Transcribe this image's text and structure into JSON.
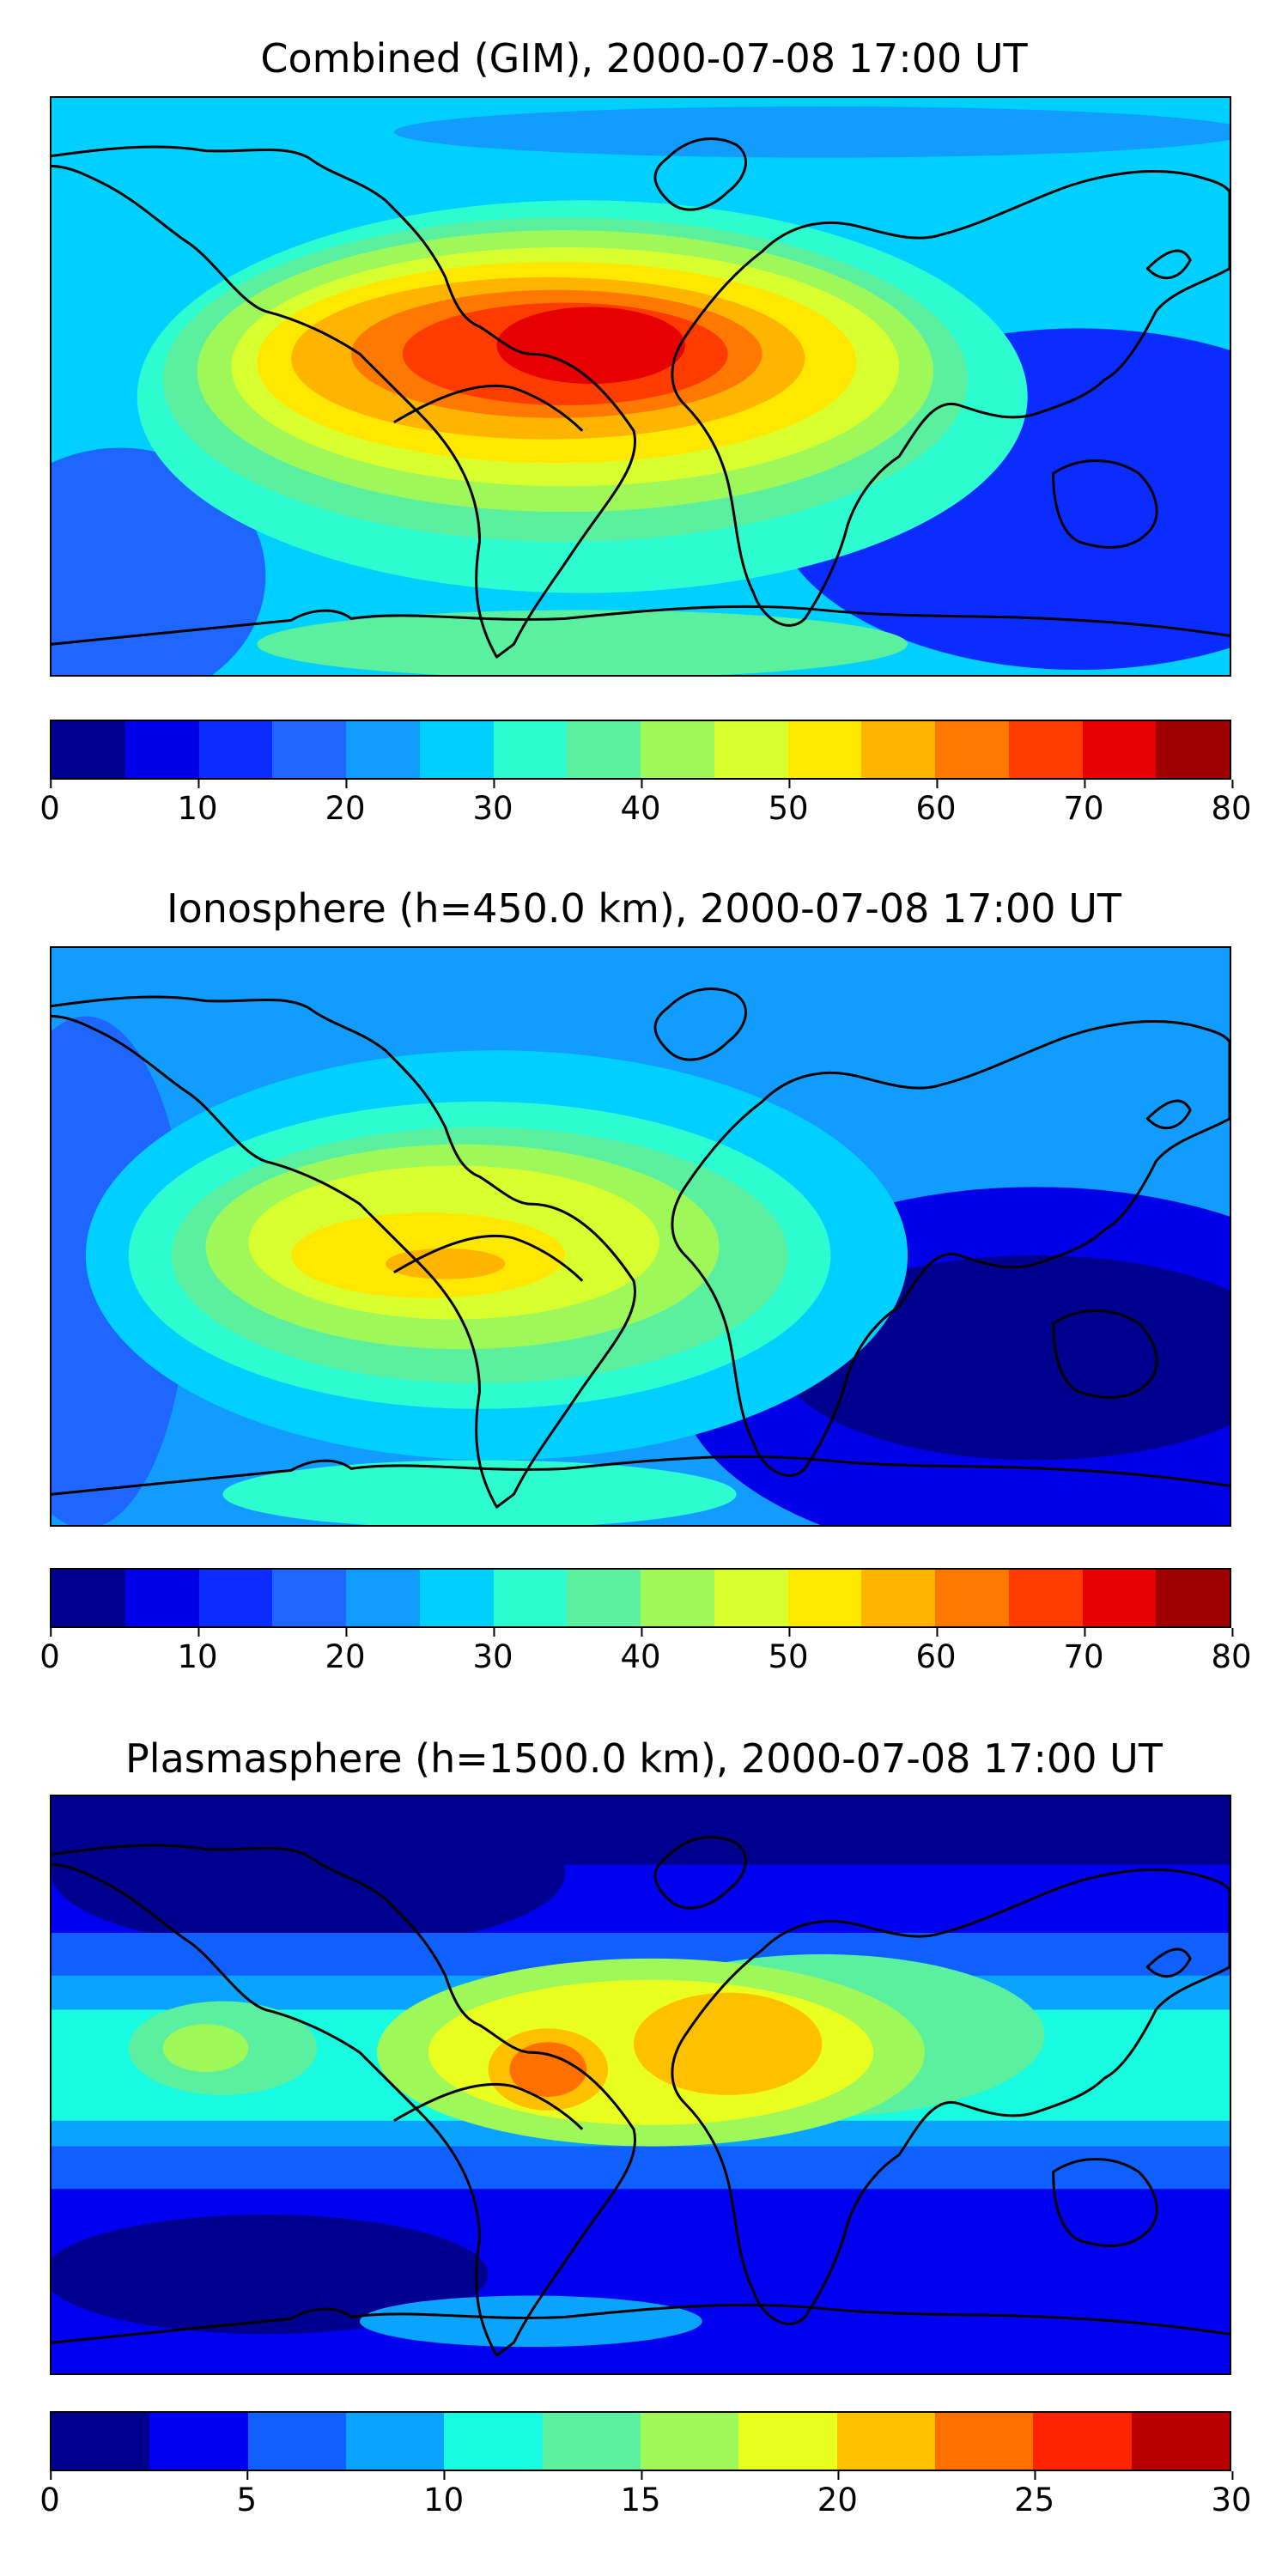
{
  "panels": [
    {
      "title": "Combined (GIM), 2000-07-08 17:00 UT",
      "variant": "combined",
      "colorbar": {
        "ticks": [
          "0",
          "10",
          "20",
          "30",
          "40",
          "50",
          "60",
          "70",
          "80"
        ],
        "colors": [
          "#00008f",
          "#0000e8",
          "#0a2cff",
          "#1f66ff",
          "#129cff",
          "#00d0ff",
          "#2cfcd0",
          "#5af0a0",
          "#9ef85a",
          "#d8ff30",
          "#ffe800",
          "#ffb400",
          "#ff7800",
          "#ff3c00",
          "#e60000",
          "#9e0000"
        ]
      }
    },
    {
      "title": "Ionosphere  (h=450.0 km), 2000-07-08 17:00 UT",
      "variant": "iono",
      "colorbar": {
        "ticks": [
          "0",
          "10",
          "20",
          "30",
          "40",
          "50",
          "60",
          "70",
          "80"
        ],
        "colors": [
          "#00008f",
          "#0000e8",
          "#0a2cff",
          "#1f66ff",
          "#129cff",
          "#00d0ff",
          "#2cfcd0",
          "#5af0a0",
          "#9ef85a",
          "#d8ff30",
          "#ffe800",
          "#ffb400",
          "#ff7800",
          "#ff3c00",
          "#e60000",
          "#9e0000"
        ]
      }
    },
    {
      "title": "Plasmasphere (h=1500.0 km), 2000-07-08 17:00 UT",
      "variant": "plasma",
      "colorbar": {
        "ticks": [
          "0",
          "5",
          "10",
          "15",
          "20",
          "25",
          "30"
        ],
        "colors": [
          "#00008f",
          "#0000f0",
          "#1060ff",
          "#0aa4ff",
          "#18fbe0",
          "#5af0a0",
          "#9ef85a",
          "#e8ff20",
          "#ffc000",
          "#ff7000",
          "#ff2400",
          "#b80000"
        ]
      }
    }
  ]
}
